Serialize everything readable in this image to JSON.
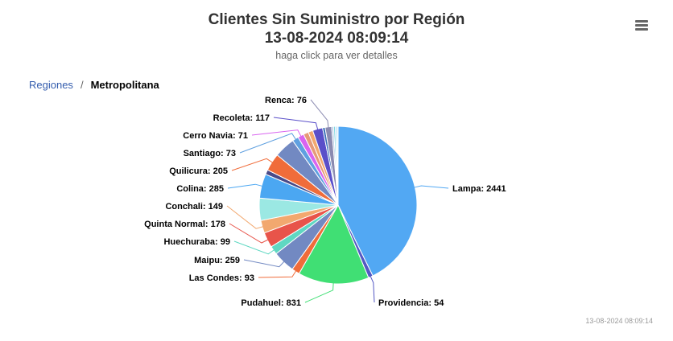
{
  "header": {
    "title_line1": "Clientes Sin Suministro por Región",
    "title_line2": "13-08-2024 08:09:14",
    "subtitle": "haga click para ver detalles"
  },
  "menu": {
    "icon": "hamburger-menu-icon"
  },
  "breadcrumb": {
    "root": "Regiones",
    "separator": "/",
    "current": "Metropolitana"
  },
  "chart_data": {
    "type": "pie",
    "slices": [
      {
        "name": "Lampa",
        "value": 2441,
        "label": "Lampa: 2441",
        "color": "#52a8f3"
      },
      {
        "name": "Providencia",
        "value": 54,
        "label": "Providencia: 54",
        "color": "#5458c4"
      },
      {
        "name": "Pudahuel",
        "value": 831,
        "label": "Pudahuel: 831",
        "color": "#40df74"
      },
      {
        "name": "Las Condes",
        "value": 93,
        "label": "Las Condes: 93",
        "color": "#f06c3a"
      },
      {
        "name": "Maipu",
        "value": 259,
        "label": "Maipu: 259",
        "color": "#7289c2"
      },
      {
        "name": "Huechuraba",
        "value": 99,
        "label": "Huechuraba: 99",
        "color": "#5fd8c2"
      },
      {
        "name": "Quinta Normal",
        "value": 178,
        "label": "Quinta Normal: 178",
        "color": "#e8544a"
      },
      {
        "name": "Conchali",
        "value": 149,
        "label": "Conchali: 149",
        "color": "#f2a86f"
      },
      {
        "name": "",
        "value": 260,
        "label": "",
        "color": "#9be8e3"
      },
      {
        "name": "Colina",
        "value": 285,
        "label": "Colina: 285",
        "color": "#4ba7f2"
      },
      {
        "name": "",
        "value": 55,
        "label": "",
        "color": "#4a4a88"
      },
      {
        "name": "Quilicura",
        "value": 205,
        "label": "Quilicura: 205",
        "color": "#f06c3a"
      },
      {
        "name": "",
        "value": 245,
        "label": "",
        "color": "#7289c2"
      },
      {
        "name": "Santiago",
        "value": 73,
        "label": "Santiago: 73",
        "color": "#5fa0e0"
      },
      {
        "name": "Cerro Navia",
        "value": 71,
        "label": "Cerro Navia: 71",
        "color": "#d964f0"
      },
      {
        "name": "",
        "value": 60,
        "label": "",
        "color": "#e69a78"
      },
      {
        "name": "",
        "value": 55,
        "label": "",
        "color": "#f2a86f"
      },
      {
        "name": "Recoleta",
        "value": 117,
        "label": "Recoleta: 117",
        "color": "#5a4fc9"
      },
      {
        "name": "",
        "value": 30,
        "label": "",
        "color": "#3a6fb8"
      },
      {
        "name": "Renca",
        "value": 76,
        "label": "Renca: 76",
        "color": "#8a8ab0"
      },
      {
        "name": "",
        "value": 22,
        "label": "",
        "color": "#b0c4e0"
      },
      {
        "name": "",
        "value": 20,
        "label": "",
        "color": "#7fd6e0"
      },
      {
        "name": "",
        "value": 18,
        "label": "",
        "color": "#9ad0f0"
      },
      {
        "name": "",
        "value": 15,
        "label": "",
        "color": "#c8e6f0"
      }
    ]
  },
  "credit": "13-08-2024 08:09:14"
}
